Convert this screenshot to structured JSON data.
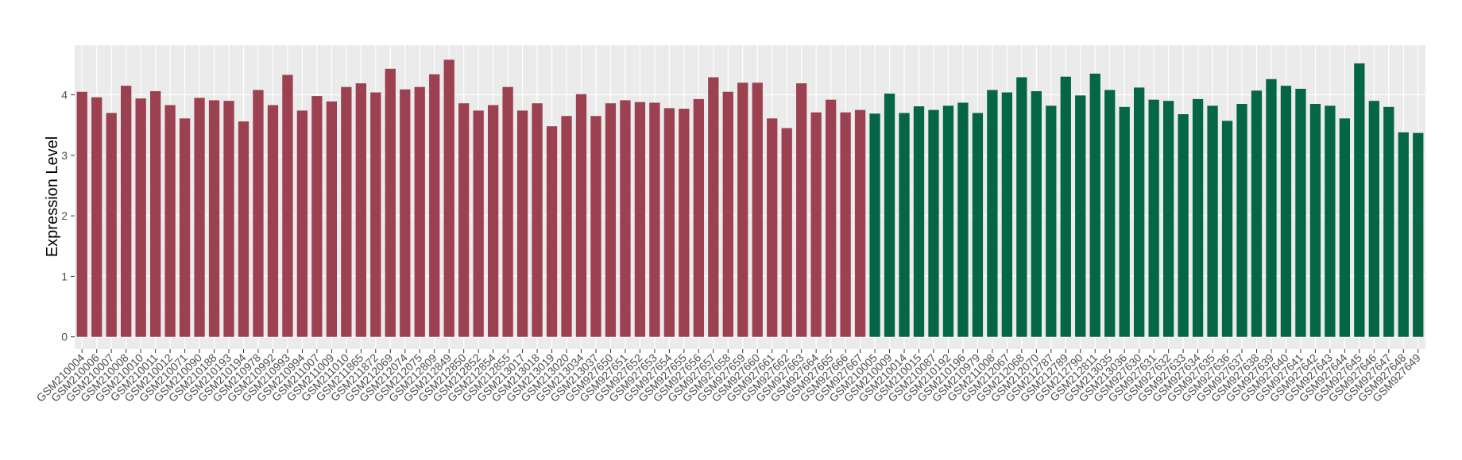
{
  "chart_data": {
    "type": "bar",
    "y_label": "Expression Level",
    "categories": [
      "GSM210004",
      "GSM210006",
      "GSM210007",
      "GSM210008",
      "GSM210010",
      "GSM210011",
      "GSM210012",
      "GSM210071",
      "GSM210090",
      "GSM210188",
      "GSM210193",
      "GSM210194",
      "GSM210978",
      "GSM210992",
      "GSM210993",
      "GSM210994",
      "GSM211007",
      "GSM211009",
      "GSM211010",
      "GSM211865",
      "GSM211872",
      "GSM212069",
      "GSM212074",
      "GSM212075",
      "GSM212809",
      "GSM212849",
      "GSM212850",
      "GSM212852",
      "GSM212854",
      "GSM212855",
      "GSM213017",
      "GSM213018",
      "GSM213019",
      "GSM213020",
      "GSM213034",
      "GSM213037",
      "GSM927650",
      "GSM927651",
      "GSM927652",
      "GSM927653",
      "GSM927654",
      "GSM927655",
      "GSM927656",
      "GSM927657",
      "GSM927658",
      "GSM927659",
      "GSM927660",
      "GSM927661",
      "GSM927662",
      "GSM927663",
      "GSM927664",
      "GSM927665",
      "GSM927666",
      "GSM927667",
      "GSM210005",
      "GSM210009",
      "GSM210014",
      "GSM210015",
      "GSM210087",
      "GSM210192",
      "GSM210196",
      "GSM210979",
      "GSM211008",
      "GSM212067",
      "GSM212068",
      "GSM212070",
      "GSM212787",
      "GSM212789",
      "GSM212790",
      "GSM212811",
      "GSM213035",
      "GSM213036",
      "GSM927630",
      "GSM927631",
      "GSM927632",
      "GSM927633",
      "GSM927634",
      "GSM927635",
      "GSM927636",
      "GSM927637",
      "GSM927638",
      "GSM927639",
      "GSM927640",
      "GSM927641",
      "GSM927642",
      "GSM927643",
      "GSM927644",
      "GSM927645",
      "GSM927646",
      "GSM927647",
      "GSM927648",
      "GSM927649"
    ],
    "values": [
      4.05,
      3.96,
      3.7,
      4.15,
      3.94,
      4.06,
      3.83,
      3.61,
      3.95,
      3.91,
      3.9,
      3.56,
      4.08,
      3.83,
      4.33,
      3.74,
      3.98,
      3.89,
      4.13,
      4.19,
      4.04,
      4.43,
      4.09,
      4.13,
      4.34,
      4.58,
      3.86,
      3.74,
      3.83,
      4.13,
      3.74,
      3.86,
      3.48,
      3.65,
      4.01,
      3.65,
      3.86,
      3.91,
      3.88,
      3.87,
      3.78,
      3.77,
      3.93,
      4.29,
      4.05,
      4.2,
      4.2,
      3.61,
      3.45,
      4.19,
      3.71,
      3.92,
      3.71,
      3.75,
      3.69,
      4.02,
      3.7,
      3.81,
      3.75,
      3.82,
      3.87,
      3.7,
      4.08,
      4.04,
      4.29,
      4.06,
      3.82,
      4.3,
      3.99,
      4.35,
      4.08,
      3.8,
      4.12,
      3.92,
      3.9,
      3.68,
      3.93,
      3.82,
      3.57,
      3.85,
      4.07,
      4.26,
      4.15,
      4.1,
      3.85,
      3.82,
      3.61,
      4.52,
      3.9,
      3.8,
      3.38,
      3.37
    ],
    "bar_colors": [
      "#9b4150",
      "#9b4150",
      "#9b4150",
      "#9b4150",
      "#9b4150",
      "#9b4150",
      "#9b4150",
      "#9b4150",
      "#9b4150",
      "#9b4150",
      "#9b4150",
      "#9b4150",
      "#9b4150",
      "#9b4150",
      "#9b4150",
      "#9b4150",
      "#9b4150",
      "#9b4150",
      "#9b4150",
      "#9b4150",
      "#9b4150",
      "#9b4150",
      "#9b4150",
      "#9b4150",
      "#9b4150",
      "#9b4150",
      "#9b4150",
      "#9b4150",
      "#9b4150",
      "#9b4150",
      "#9b4150",
      "#9b4150",
      "#9b4150",
      "#9b4150",
      "#9b4150",
      "#9b4150",
      "#9b4150",
      "#9b4150",
      "#9b4150",
      "#9b4150",
      "#9b4150",
      "#9b4150",
      "#9b4150",
      "#9b4150",
      "#9b4150",
      "#9b4150",
      "#9b4150",
      "#9b4150",
      "#9b4150",
      "#9b4150",
      "#9b4150",
      "#9b4150",
      "#9b4150",
      "#9b4150",
      "#046645",
      "#046645",
      "#046645",
      "#046645",
      "#046645",
      "#046645",
      "#046645",
      "#046645",
      "#046645",
      "#046645",
      "#046645",
      "#046645",
      "#046645",
      "#046645",
      "#046645",
      "#046645",
      "#046645",
      "#046645",
      "#046645",
      "#046645",
      "#046645",
      "#046645",
      "#046645",
      "#046645",
      "#046645",
      "#046645",
      "#046645",
      "#046645",
      "#046645",
      "#046645",
      "#046645",
      "#046645",
      "#046645",
      "#046645",
      "#046645",
      "#046645",
      "#046645",
      "#046645"
    ],
    "ylim": [
      -0.2,
      4.82
    ],
    "yticks": [
      0,
      1,
      2,
      3,
      4
    ],
    "grid": true
  }
}
